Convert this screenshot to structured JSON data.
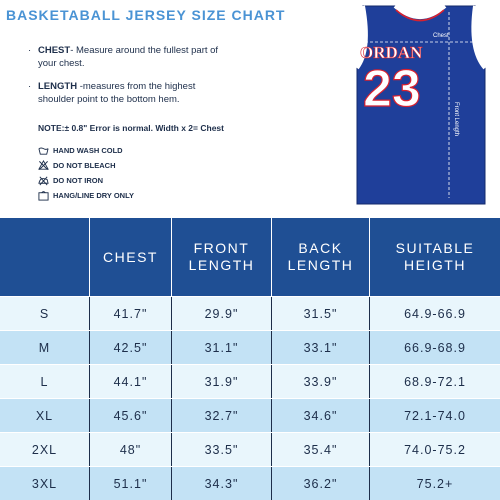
{
  "title": "BASKETABALL JERSEY SIZE CHART",
  "instructions": {
    "chest_term": "CHEST",
    "chest_text": "- Measure around the fullest part of your chest.",
    "length_term": "LENGTH",
    "length_text": " -measures from the highest shoulder point to the bottom hem."
  },
  "accuracy_note": "NOTE:± 0.8\" Error is normal. Width x 2= Chest",
  "care": [
    {
      "icon": "wash-icon",
      "label": "HAND WASH COLD"
    },
    {
      "icon": "no-bleach-icon",
      "label": "DO NOT BLEACH"
    },
    {
      "icon": "no-iron-icon",
      "label": "DO NOT IRON"
    },
    {
      "icon": "hang-dry-icon",
      "label": "HANG/LINE DRY ONLY"
    }
  ],
  "jersey": {
    "name": "ORDAN",
    "number": "23",
    "chest_label": "Chest",
    "length_label": "Front Length",
    "color": "#1f3f9a",
    "trim": "#ffffff",
    "accent": "#d8212f"
  },
  "table": {
    "headers": [
      [
        "",
        ""
      ],
      [
        "CHEST",
        ""
      ],
      [
        "FRONT",
        "LENGTH"
      ],
      [
        "BACK",
        "LENGTH"
      ],
      [
        "SUITABLE",
        "HEIGTH"
      ]
    ],
    "rows": [
      [
        "S",
        "41.7\"",
        "29.9\"",
        "31.5\"",
        "64.9-66.9"
      ],
      [
        "M",
        "42.5\"",
        "31.1\"",
        "33.1\"",
        "66.9-68.9"
      ],
      [
        "L",
        "44.1\"",
        "31.9\"",
        "33.9\"",
        "68.9-72.1"
      ],
      [
        "XL",
        "45.6\"",
        "32.7\"",
        "34.6\"",
        "72.1-74.0"
      ],
      [
        "2XL",
        "48\"",
        "33.5\"",
        "35.4\"",
        "74.0-75.2"
      ],
      [
        "3XL",
        "51.1\"",
        "34.3\"",
        "36.2\"",
        "75.2+"
      ]
    ],
    "header_color": "#1f4f94",
    "row_colors": [
      "#e9f6fc",
      "#c3e2f5"
    ]
  }
}
